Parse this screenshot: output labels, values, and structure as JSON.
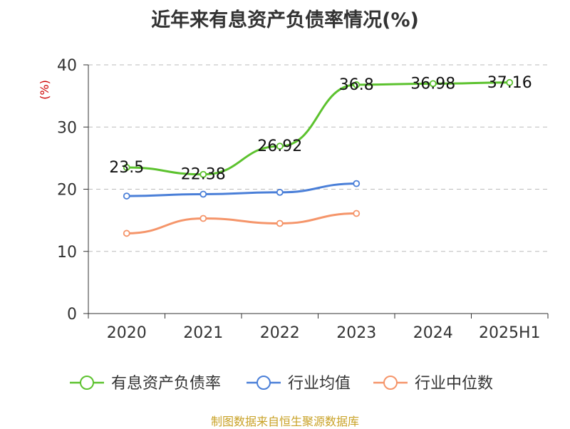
{
  "chart_data": {
    "type": "line",
    "title": "近年来有息资产负债率情况(%)",
    "ylabel": "(%)",
    "xlabel": "",
    "categories": [
      "2020",
      "2021",
      "2022",
      "2023",
      "2024",
      "2025H1"
    ],
    "ylim": [
      0,
      40
    ],
    "yticks": [
      0,
      10,
      20,
      30,
      40
    ],
    "grid": "horizontal dashed",
    "legend_position": "bottom",
    "series": [
      {
        "name": "有息资产负债率",
        "color": "#5cc22e",
        "values": [
          23.5,
          22.38,
          26.92,
          36.8,
          36.98,
          37.16
        ],
        "labels": [
          "23.5",
          "22.38",
          "26.92",
          "36.8",
          "36.98",
          "37.16"
        ]
      },
      {
        "name": "行业均值",
        "color": "#4a7fd8",
        "values": [
          18.9,
          19.2,
          19.5,
          20.9,
          null,
          null
        ]
      },
      {
        "name": "行业中位数",
        "color": "#f5956a",
        "values": [
          12.9,
          15.3,
          14.5,
          16.1,
          null,
          null
        ]
      }
    ]
  },
  "footer": "制图数据来自恒生聚源数据库"
}
